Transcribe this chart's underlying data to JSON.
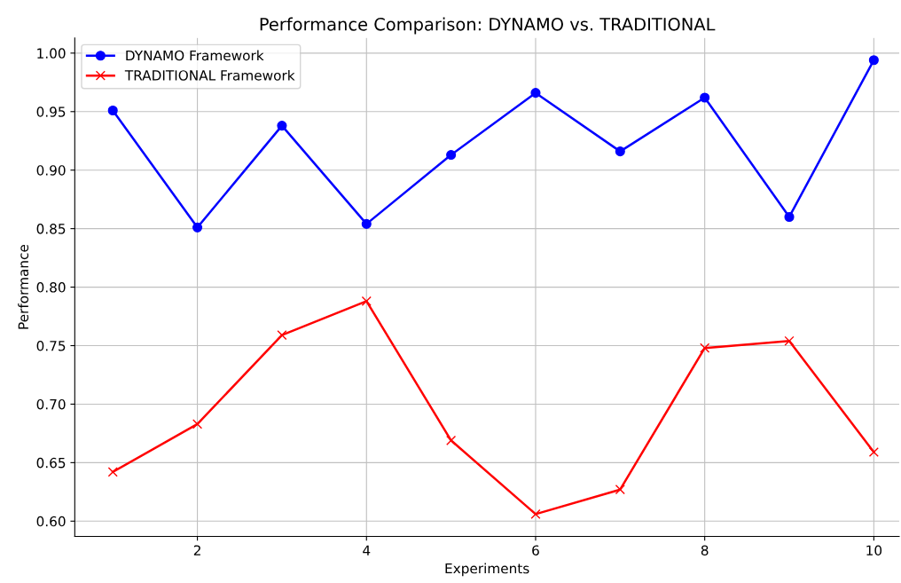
{
  "chart_data": {
    "type": "line",
    "title": "Performance Comparison: DYNAMO vs. TRADITIONAL",
    "xlabel": "Experiments",
    "ylabel": "Performance",
    "x": [
      1,
      2,
      3,
      4,
      5,
      6,
      7,
      8,
      9,
      10
    ],
    "series": [
      {
        "name": "DYNAMO Framework",
        "color": "#0000ff",
        "marker": "circle",
        "values": [
          0.951,
          0.851,
          0.938,
          0.854,
          0.913,
          0.966,
          0.916,
          0.962,
          0.86,
          0.994
        ]
      },
      {
        "name": "TRADITIONAL Framework",
        "color": "#ff0000",
        "marker": "cross",
        "values": [
          0.642,
          0.683,
          0.759,
          0.788,
          0.669,
          0.606,
          0.627,
          0.748,
          0.754,
          0.659
        ]
      }
    ],
    "xlim": [
      0.55,
      10.3
    ],
    "xticks": [
      2,
      4,
      6,
      8,
      10
    ],
    "ylim": [
      0.587,
      1.013
    ],
    "yticks": [
      {
        "value": 0.6,
        "label": "0.60"
      },
      {
        "value": 0.65,
        "label": "0.65"
      },
      {
        "value": 0.7,
        "label": "0.70"
      },
      {
        "value": 0.75,
        "label": "0.75"
      },
      {
        "value": 0.8,
        "label": "0.80"
      },
      {
        "value": 0.85,
        "label": "0.85"
      },
      {
        "value": 0.9,
        "label": "0.90"
      },
      {
        "value": 0.95,
        "label": "0.95"
      },
      {
        "value": 1.0,
        "label": "1.00"
      }
    ],
    "grid": true,
    "legend": "top left",
    "line_style": "solid"
  }
}
